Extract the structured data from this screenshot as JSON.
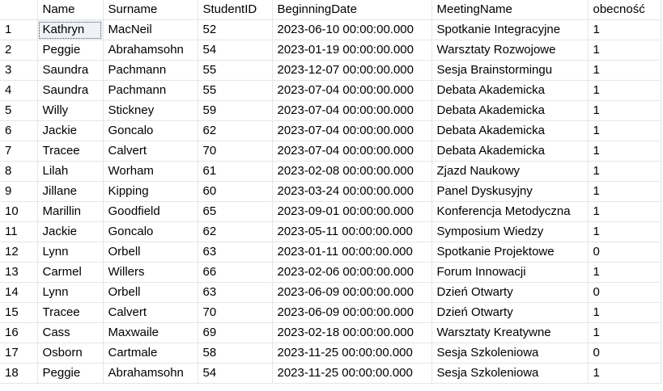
{
  "grid": {
    "columns": [
      "Name",
      "Surname",
      "StudentID",
      "BeginningDate",
      "MeetingName",
      "obecność"
    ],
    "rows": [
      [
        "Kathryn",
        "MacNeil",
        "52",
        "2023-06-10 00:00:00.000",
        "Spotkanie Integracyjne",
        "1"
      ],
      [
        "Peggie",
        "Abrahamsohn",
        "54",
        "2023-01-19 00:00:00.000",
        "Warsztaty Rozwojowe",
        "1"
      ],
      [
        "Saundra",
        "Pachmann",
        "55",
        "2023-12-07 00:00:00.000",
        "Sesja Brainstormingu",
        "1"
      ],
      [
        "Saundra",
        "Pachmann",
        "55",
        "2023-07-04 00:00:00.000",
        "Debata Akademicka",
        "1"
      ],
      [
        "Willy",
        "Stickney",
        "59",
        "2023-07-04 00:00:00.000",
        "Debata Akademicka",
        "1"
      ],
      [
        "Jackie",
        "Goncalo",
        "62",
        "2023-07-04 00:00:00.000",
        "Debata Akademicka",
        "1"
      ],
      [
        "Tracee",
        "Calvert",
        "70",
        "2023-07-04 00:00:00.000",
        "Debata Akademicka",
        "1"
      ],
      [
        "Lilah",
        "Worham",
        "61",
        "2023-02-08 00:00:00.000",
        "Zjazd Naukowy",
        "1"
      ],
      [
        "Jillane",
        "Kipping",
        "60",
        "2023-03-24 00:00:00.000",
        "Panel Dyskusyjny",
        "1"
      ],
      [
        "Marillin",
        "Goodfield",
        "65",
        "2023-09-01 00:00:00.000",
        "Konferencja Metodyczna",
        "1"
      ],
      [
        "Jackie",
        "Goncalo",
        "62",
        "2023-05-11 00:00:00.000",
        "Symposium Wiedzy",
        "1"
      ],
      [
        "Lynn",
        "Orbell",
        "63",
        "2023-01-11 00:00:00.000",
        "Spotkanie Projektowe",
        "0"
      ],
      [
        "Carmel",
        "Willers",
        "66",
        "2023-02-06 00:00:00.000",
        "Forum Innowacji",
        "1"
      ],
      [
        "Lynn",
        "Orbell",
        "63",
        "2023-06-09 00:00:00.000",
        "Dzień Otwarty",
        "0"
      ],
      [
        "Tracee",
        "Calvert",
        "70",
        "2023-06-09 00:00:00.000",
        "Dzień Otwarty",
        "1"
      ],
      [
        "Cass",
        "Maxwaile",
        "69",
        "2023-02-18 00:00:00.000",
        "Warsztaty Kreatywne",
        "1"
      ],
      [
        "Osborn",
        "Cartmale",
        "58",
        "2023-11-25 00:00:00.000",
        "Sesja Szkoleniowa",
        "0"
      ],
      [
        "Peggie",
        "Abrahamsohn",
        "54",
        "2023-11-25 00:00:00.000",
        "Sesja Szkoleniowa",
        "1"
      ]
    ],
    "row_numbers": [
      "1",
      "2",
      "3",
      "4",
      "5",
      "6",
      "7",
      "8",
      "9",
      "10",
      "11",
      "12",
      "13",
      "14",
      "15",
      "16",
      "17",
      "18"
    ],
    "selected_cell": "row 1, Name"
  }
}
